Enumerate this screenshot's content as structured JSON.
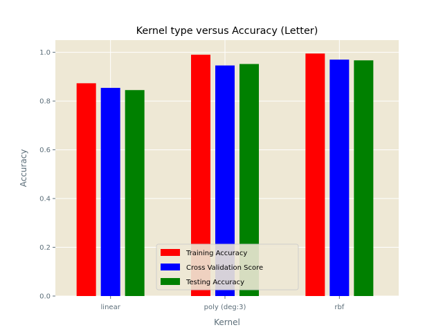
{
  "chart_data": {
    "type": "bar",
    "title": "Kernel type versus Accuracy (Letter)",
    "xlabel": "Kernel",
    "ylabel": "Accuracy",
    "categories": [
      "linear",
      "poly (deg:3)",
      "rbf"
    ],
    "series": [
      {
        "name": "Training Accuracy",
        "color": "#ff0000",
        "values": [
          0.873,
          0.99,
          0.995
        ]
      },
      {
        "name": "Cross Validation Score",
        "color": "#0000ff",
        "values": [
          0.854,
          0.946,
          0.97
        ]
      },
      {
        "name": "Testing Accuracy",
        "color": "#008000",
        "values": [
          0.845,
          0.952,
          0.967
        ]
      }
    ],
    "ylim": [
      0,
      1.05
    ],
    "yticks": [
      "0.0",
      "0.2",
      "0.4",
      "0.6",
      "0.8",
      "1.0"
    ],
    "grid": true,
    "legend": "lower-center",
    "background": "#eee8d5"
  }
}
